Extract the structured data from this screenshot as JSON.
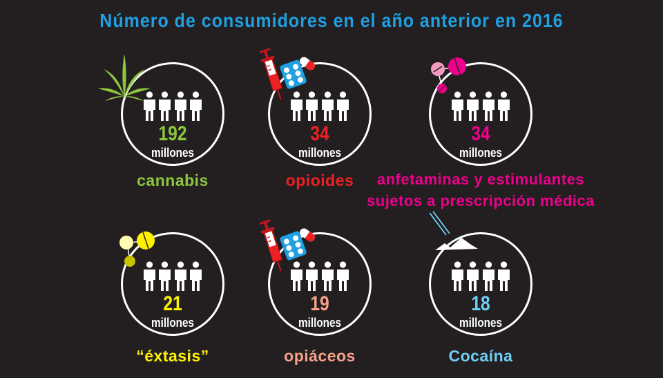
{
  "title": "Número de consumidores en el año anterior en 2016",
  "unit_label": "millones",
  "colors": {
    "background": "#231f20",
    "title": "#1fa0e3",
    "circle": "#ffffff"
  },
  "cards": [
    {
      "count": "192",
      "label": "cannabis",
      "color": "#8dc63f",
      "icon": "cannabis-leaf-icon"
    },
    {
      "count": "34",
      "label": "opioides",
      "color": "#ed2024",
      "icon": "syringe-pills-icon"
    },
    {
      "count": "34",
      "label_lines": [
        "anfetaminas y estimulantes",
        "sujetos a prescripción médica"
      ],
      "color": "#ec008c",
      "icon": "pink-pills-icon"
    },
    {
      "count": "21",
      "label": "“éxtasis”",
      "color": "#fff200",
      "icon": "yellow-pills-icon"
    },
    {
      "count": "19",
      "label": "opiáceos",
      "color": "#f7a08a",
      "icon": "syringe-pills-icon"
    },
    {
      "count": "18",
      "label": "Cocaína",
      "color": "#6dcff6",
      "icon": "cocaine-lines-icon"
    }
  ]
}
